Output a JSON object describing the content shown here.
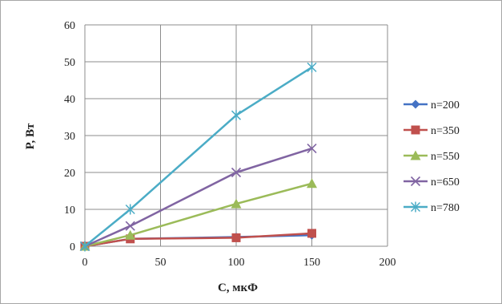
{
  "chart_data": {
    "type": "line",
    "xlabel": "C, мкФ",
    "ylabel": "P, Вт",
    "xlim": [
      0,
      200
    ],
    "ylim": [
      0,
      60
    ],
    "x_ticks": [
      0,
      50,
      100,
      150,
      200
    ],
    "y_ticks": [
      0,
      10,
      20,
      30,
      40,
      50,
      60
    ],
    "grid": "vertical and horizontal",
    "legend_position": "right",
    "series": [
      {
        "name": "n=200",
        "color": "#4472c4",
        "marker": "diamond",
        "x": [
          0,
          30,
          100,
          150
        ],
        "values": [
          0,
          2,
          2.5,
          3
        ]
      },
      {
        "name": "n=350",
        "color": "#c0504d",
        "marker": "square",
        "x": [
          0,
          30,
          100,
          150
        ],
        "values": [
          0,
          2,
          2.3,
          3.5
        ]
      },
      {
        "name": "n=550",
        "color": "#9bbb59",
        "marker": "triangle",
        "x": [
          0,
          30,
          100,
          150
        ],
        "values": [
          0,
          3,
          11.5,
          17
        ]
      },
      {
        "name": "n=650",
        "color": "#8064a2",
        "marker": "x",
        "x": [
          0,
          30,
          100,
          150
        ],
        "values": [
          0,
          5.5,
          20,
          26.5
        ]
      },
      {
        "name": "n=780",
        "color": "#4bacc6",
        "marker": "star",
        "x": [
          0,
          30,
          100,
          150
        ],
        "values": [
          0,
          10,
          35.5,
          48.5
        ]
      }
    ]
  }
}
